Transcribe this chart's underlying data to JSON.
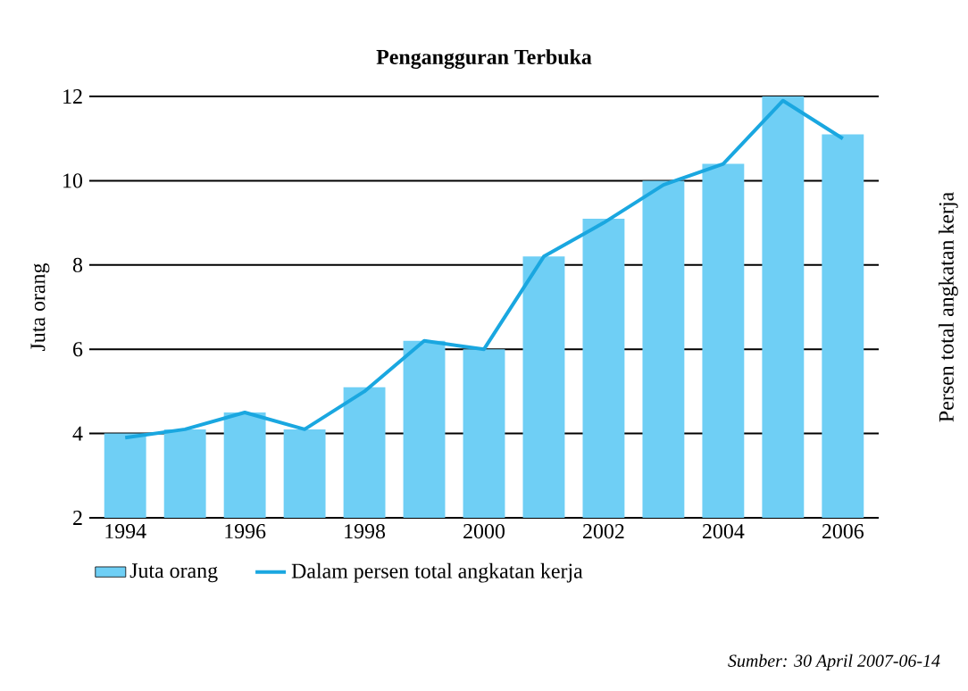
{
  "chart_data": {
    "type": "bar",
    "title": "**Pengangguran Terbuka**",
    "ylabel": "Juta orang",
    "y2label": "Persen total angkatan kerja",
    "categories": [
      "1994",
      null,
      "1996",
      null,
      "1998",
      null,
      "2000",
      null,
      "2002",
      null,
      "2004",
      null,
      "2006"
    ],
    "series": [
      {
        "name": "Juta orang",
        "color": "#6fcff5",
        "values": [
          4.0,
          4.1,
          4.5,
          4.1,
          5.1,
          6.2,
          6.0,
          8.2,
          9.1,
          10.0,
          10.4,
          12.0,
          11.1
        ]
      },
      {
        "name": "Dalam persen total angkatan kerja",
        "type": "line",
        "color": "#1aa7e0",
        "values": [
          3.9,
          4.1,
          4.5,
          4.1,
          5.0,
          6.2,
          6.0,
          8.2,
          9.0,
          9.9,
          10.4,
          11.9,
          11.0
        ]
      }
    ],
    "ylim": [
      2,
      12
    ],
    "yticks": [
      2,
      4,
      6,
      8,
      10,
      12
    ],
    "grid": "y",
    "legend": "bottom",
    "annotations": [
      "*Sumber: 30 April 2007-06-14*"
    ]
  }
}
